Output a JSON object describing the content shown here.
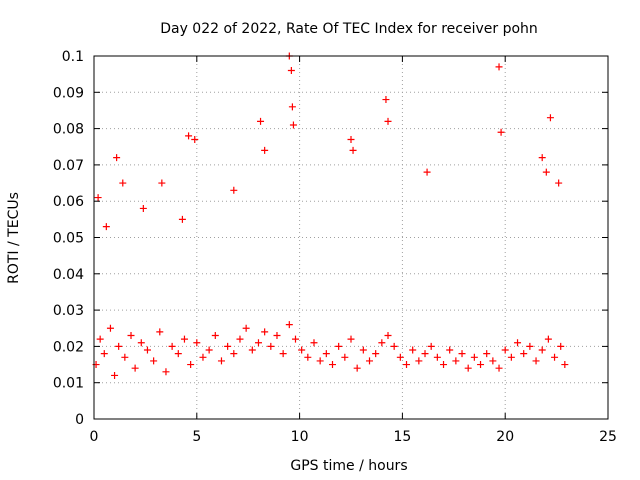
{
  "chart_data": {
    "type": "scatter",
    "title": "Day 022 of 2022, Rate Of TEC Index for receiver pohn",
    "xlabel": "GPS time / hours",
    "ylabel": "ROTI / TECUs",
    "xlim": [
      0,
      25
    ],
    "ylim": [
      0,
      0.1
    ],
    "x_ticks": [
      "0",
      "5",
      "10",
      "15",
      "20",
      "25"
    ],
    "y_ticks": [
      "0",
      "0.01",
      "0.02",
      "0.03",
      "0.04",
      "0.05",
      "0.06",
      "0.07",
      "0.08",
      "0.09",
      "0.1"
    ],
    "grid": true,
    "marker": "plus",
    "marker_color": "#ff0000",
    "series": [
      {
        "x": [
          0.1,
          0.3,
          0.5,
          0.8,
          1.0,
          1.2,
          1.5,
          1.8,
          2.0,
          2.3,
          2.6,
          2.9,
          3.2,
          3.5,
          3.8,
          4.1,
          4.4,
          4.7,
          5.0,
          5.3,
          5.6,
          5.9,
          6.2,
          6.5,
          6.8,
          7.1,
          7.4,
          7.7,
          8.0,
          8.3,
          8.6,
          8.9,
          9.2,
          9.5,
          9.8,
          10.1,
          10.4,
          10.7,
          11.0,
          11.3,
          11.6,
          11.9,
          12.2,
          12.5,
          12.8,
          13.1,
          13.4,
          13.7,
          14.0,
          14.3,
          14.6,
          14.9,
          15.2,
          15.5,
          15.8,
          16.1,
          16.4,
          16.7,
          17.0,
          17.3,
          17.6,
          17.9,
          18.2,
          18.5,
          18.8,
          19.1,
          19.4,
          19.7,
          20.0,
          20.3,
          20.6,
          20.9,
          21.2,
          21.5,
          21.8,
          22.1,
          22.4,
          22.7,
          22.9,
          0.2,
          0.6,
          1.1,
          1.4,
          2.4,
          3.3,
          4.3,
          4.6,
          4.9,
          6.8,
          8.1,
          8.3,
          9.5,
          9.6,
          9.65,
          9.7,
          12.5,
          12.6,
          14.2,
          14.3,
          16.2,
          19.7,
          19.8,
          21.8,
          22.0,
          22.2,
          22.6
        ],
        "y": [
          0.015,
          0.022,
          0.018,
          0.025,
          0.012,
          0.02,
          0.017,
          0.023,
          0.014,
          0.021,
          0.019,
          0.016,
          0.024,
          0.013,
          0.02,
          0.018,
          0.022,
          0.015,
          0.021,
          0.017,
          0.019,
          0.023,
          0.016,
          0.02,
          0.018,
          0.022,
          0.025,
          0.019,
          0.021,
          0.024,
          0.02,
          0.023,
          0.018,
          0.026,
          0.022,
          0.019,
          0.017,
          0.021,
          0.016,
          0.018,
          0.015,
          0.02,
          0.017,
          0.022,
          0.014,
          0.019,
          0.016,
          0.018,
          0.021,
          0.023,
          0.02,
          0.017,
          0.015,
          0.019,
          0.016,
          0.018,
          0.02,
          0.017,
          0.015,
          0.019,
          0.016,
          0.018,
          0.014,
          0.017,
          0.015,
          0.018,
          0.016,
          0.014,
          0.019,
          0.017,
          0.021,
          0.018,
          0.02,
          0.016,
          0.019,
          0.022,
          0.017,
          0.02,
          0.015,
          0.061,
          0.053,
          0.072,
          0.065,
          0.058,
          0.065,
          0.055,
          0.078,
          0.077,
          0.063,
          0.082,
          0.074,
          0.1,
          0.096,
          0.086,
          0.081,
          0.077,
          0.074,
          0.088,
          0.082,
          0.068,
          0.097,
          0.079,
          0.072,
          0.068,
          0.083,
          0.065
        ]
      }
    ]
  }
}
